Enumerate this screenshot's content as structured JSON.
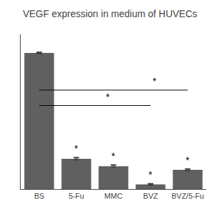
{
  "chart_data": {
    "type": "bar",
    "title": "VEGF expression in medium of HUVECs",
    "categories": [
      "BS",
      "5-Fu",
      "MMC",
      "BVZ",
      "BVZ/5-Fu"
    ],
    "values": [
      2200,
      490,
      370,
      75,
      310
    ],
    "errors": [
      12,
      18,
      18,
      10,
      14
    ],
    "color": "#606060",
    "ylim": [
      0,
      2500
    ],
    "tick_labels": "x",
    "grid": false,
    "annotations": [
      {
        "text": "*",
        "x": "5-Fu",
        "y": 543
      },
      {
        "text": "*",
        "x": "MMC",
        "y": 423
      },
      {
        "text": "*",
        "x": "BVZ",
        "y": 120
      },
      {
        "text": "*",
        "x": "BVZ/5-Fu",
        "y": 359
      },
      {
        "text": "*",
        "x": 1.86,
        "y": 1380
      },
      {
        "text": "*",
        "x": 3.12,
        "y": 1630
      }
    ],
    "sig_lines": [
      {
        "x1": "BS",
        "x2": "BVZ",
        "y": 1350
      },
      {
        "x1": "BS",
        "x2": "BVZ/5-Fu",
        "y": 1600
      }
    ]
  }
}
